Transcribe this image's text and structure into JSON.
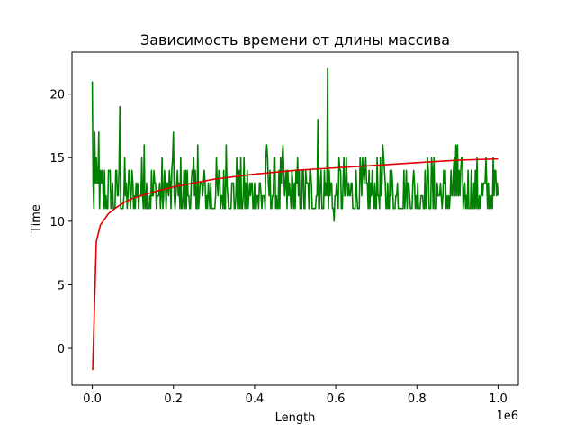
{
  "chart_data": {
    "type": "line",
    "title": "Зависимость времени от длины массива",
    "xlabel": "Length",
    "ylabel": "Time",
    "x_offset_label": "1e6",
    "xlim": [
      -50000,
      1050000
    ],
    "ylim": [
      -2.9,
      23.3
    ],
    "x_ticks": [
      0,
      200000,
      400000,
      600000,
      800000,
      1000000
    ],
    "x_tick_labels": [
      "0.0",
      "0.2",
      "0.4",
      "0.6",
      "0.8",
      "1.0"
    ],
    "y_ticks": [
      0,
      5,
      10,
      15,
      20
    ],
    "y_tick_labels": [
      "0",
      "5",
      "10",
      "15",
      "20"
    ],
    "grid": false,
    "series": [
      {
        "color": "#008000",
        "description": "measured times, dense noisy line between ~11 and ~15 with spikes",
        "x_start": 0,
        "x_step": 2000,
        "baseline_low": 11,
        "baseline_high": 15,
        "spikes": [
          {
            "x": 0,
            "y": 21
          },
          {
            "x": 5000,
            "y": 17
          },
          {
            "x": 15000,
            "y": 17
          },
          {
            "x": 68000,
            "y": 19
          },
          {
            "x": 128000,
            "y": 16
          },
          {
            "x": 200000,
            "y": 17
          },
          {
            "x": 260000,
            "y": 16
          },
          {
            "x": 330000,
            "y": 16
          },
          {
            "x": 430000,
            "y": 16
          },
          {
            "x": 470000,
            "y": 16
          },
          {
            "x": 555000,
            "y": 18
          },
          {
            "x": 580000,
            "y": 22
          },
          {
            "x": 595000,
            "y": 10
          },
          {
            "x": 715000,
            "y": 16
          },
          {
            "x": 895000,
            "y": 16
          },
          {
            "x": 900000,
            "y": 16
          }
        ]
      },
      {
        "color": "#e00000",
        "description": "logarithmic fit",
        "x": [
          1000,
          10000,
          20000,
          40000,
          60000,
          80000,
          100000,
          150000,
          200000,
          300000,
          400000,
          500000,
          600000,
          700000,
          800000,
          900000,
          1000000
        ],
        "y": [
          -1.7,
          8.4,
          9.7,
          10.6,
          11.1,
          11.5,
          11.8,
          12.3,
          12.7,
          13.3,
          13.7,
          14.0,
          14.2,
          14.4,
          14.6,
          14.8,
          14.9
        ]
      }
    ]
  }
}
